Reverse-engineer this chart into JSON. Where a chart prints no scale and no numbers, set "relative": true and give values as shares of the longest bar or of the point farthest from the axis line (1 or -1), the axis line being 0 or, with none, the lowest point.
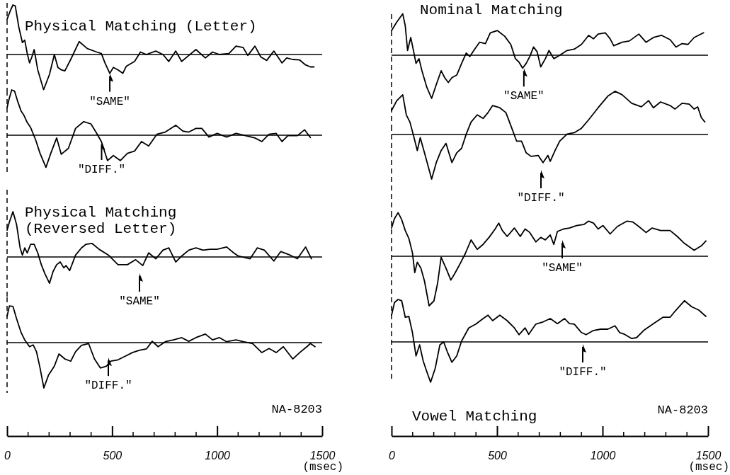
{
  "chart_data": [
    {
      "type": "line",
      "relative": true,
      "title": "Physical Matching (Letter)",
      "xlim": [
        0,
        1500
      ],
      "tick_labels": false,
      "x": [
        0,
        17,
        28,
        39,
        56,
        73,
        84,
        96,
        107,
        118,
        129,
        146,
        174,
        202,
        225,
        242,
        258,
        275,
        303,
        343,
        382,
        427,
        449,
        466,
        489,
        506,
        528,
        551,
        567,
        607,
        635,
        663,
        708,
        742,
        770,
        803,
        831,
        865,
        899,
        944,
        978,
        1011,
        1056,
        1090,
        1124,
        1146,
        1180,
        1208,
        1236,
        1270,
        1309,
        1331,
        1360,
        1393,
        1421,
        1444,
        1461
      ],
      "series": [
        {
          "color": "#000000",
          "values": [
            0.71,
            0.9,
            1.0,
            0.98,
            0.55,
            0.24,
            0.29,
            0.02,
            -0.17,
            -0.05,
            0.1,
            -0.31,
            -0.71,
            -0.4,
            0.0,
            -0.26,
            -0.31,
            -0.33,
            -0.1,
            0.26,
            0.12,
            0.05,
            0.02,
            -0.17,
            -0.38,
            -0.26,
            -0.31,
            -0.38,
            -0.24,
            -0.14,
            0.05,
            0.0,
            0.07,
            0.0,
            -0.14,
            0.07,
            -0.14,
            -0.02,
            0.1,
            -0.07,
            0.05,
            0.0,
            0.02,
            0.17,
            0.14,
            -0.02,
            0.17,
            -0.05,
            -0.12,
            0.07,
            -0.17,
            -0.07,
            -0.1,
            -0.11,
            -0.21,
            -0.25,
            -0.25
          ]
        }
      ],
      "ref_lines": [
        {
          "axis": "x",
          "value": 0,
          "line_style": "dashed"
        }
      ],
      "annotations": [
        {
          "text": "\"SAME\"",
          "x": 489,
          "y": -0.38
        }
      ]
    },
    {
      "type": "line",
      "relative": true,
      "xlim": [
        0,
        1500
      ],
      "tick_labels": false,
      "x": [
        0,
        9,
        22,
        36,
        51,
        67,
        79,
        96,
        112,
        135,
        157,
        185,
        208,
        236,
        258,
        292,
        326,
        365,
        399,
        427,
        449,
        478,
        506,
        539,
        573,
        607,
        640,
        674,
        713,
        753,
        803,
        837,
        865,
        899,
        927,
        961,
        1000,
        1045,
        1090,
        1135,
        1180,
        1213,
        1247,
        1281,
        1309,
        1337,
        1382,
        1416,
        1444
      ],
      "series": [
        {
          "color": "#000000",
          "values": [
            0.61,
            0.79,
            1.0,
            0.97,
            0.74,
            0.53,
            0.45,
            0.28,
            0.17,
            -0.09,
            -0.4,
            -0.71,
            -0.4,
            -0.06,
            -0.42,
            -0.29,
            0.15,
            0.3,
            0.25,
            0.04,
            -0.14,
            -0.56,
            -0.45,
            -0.56,
            -0.4,
            -0.35,
            -0.14,
            -0.24,
            0.02,
            0.07,
            0.22,
            0.09,
            0.07,
            0.15,
            0.15,
            -0.04,
            0.04,
            -0.04,
            0.04,
            -0.01,
            -0.06,
            -0.14,
            0.02,
            0.04,
            -0.14,
            -0.01,
            -0.01,
            0.12,
            -0.05
          ]
        }
      ],
      "ref_lines": [
        {
          "axis": "x",
          "value": 0,
          "line_style": "dashed"
        }
      ],
      "annotations": [
        {
          "text": "\"DIFF.\"",
          "x": 450,
          "y": -0.14
        }
      ]
    },
    {
      "type": "line",
      "relative": true,
      "title": "Physical Matching (Reversed Letter)",
      "xlim": [
        0,
        1500
      ],
      "tick_labels": false,
      "x": [
        0,
        11,
        28,
        45,
        62,
        73,
        84,
        96,
        112,
        129,
        146,
        163,
        180,
        202,
        219,
        236,
        253,
        270,
        281,
        298,
        326,
        354,
        376,
        404,
        438,
        483,
        528,
        573,
        612,
        646,
        674,
        708,
        742,
        770,
        803,
        831,
        865,
        899,
        933,
        966,
        1000,
        1045,
        1079,
        1101,
        1157,
        1191,
        1225,
        1270,
        1303,
        1348,
        1382,
        1421,
        1449
      ],
      "series": [
        {
          "color": "#000000",
          "values": [
            0.59,
            0.77,
            1.0,
            0.72,
            0.2,
            0.04,
            0.2,
            0.09,
            0.28,
            0.28,
            0.09,
            -0.17,
            -0.37,
            -0.58,
            -0.32,
            -0.17,
            -0.11,
            -0.24,
            -0.19,
            -0.3,
            0.04,
            0.2,
            0.28,
            0.3,
            0.17,
            0.04,
            -0.17,
            -0.17,
            -0.06,
            -0.19,
            0.09,
            -0.04,
            0.15,
            0.2,
            -0.11,
            0.02,
            0.15,
            0.2,
            0.15,
            0.17,
            0.17,
            0.22,
            0.09,
            0.02,
            -0.04,
            0.2,
            0.15,
            -0.09,
            0.12,
            0.04,
            -0.04,
            0.22,
            -0.04
          ]
        }
      ],
      "ref_lines": [
        {
          "axis": "x",
          "value": 0,
          "line_style": "dashed"
        }
      ],
      "annotations": [
        "\"SAME\""
      ]
    },
    {
      "type": "line",
      "relative": true,
      "xlim": [
        0,
        1500
      ],
      "tick_labels": "x",
      "xlabel": "(msec)",
      "xticks": [
        0,
        500,
        1000,
        1500
      ],
      "x": [
        0,
        11,
        28,
        45,
        67,
        84,
        96,
        107,
        124,
        140,
        157,
        175,
        197,
        225,
        247,
        275,
        303,
        326,
        354,
        388,
        416,
        444,
        472,
        494,
        528,
        562,
        596,
        629,
        663,
        691,
        719,
        753,
        792,
        831,
        865,
        899,
        944,
        978,
        1011,
        1045,
        1090,
        1124,
        1169,
        1213,
        1247,
        1281,
        1315,
        1360,
        1393,
        1427,
        1444,
        1466
      ],
      "series": [
        {
          "color": "#000000",
          "values": [
            0.58,
            0.81,
            0.8,
            0.53,
            0.22,
            0.06,
            -0.02,
            -0.09,
            -0.05,
            -0.2,
            -0.56,
            -1.0,
            -0.72,
            -0.52,
            -0.25,
            -0.36,
            -0.41,
            -0.2,
            -0.06,
            -0.02,
            -0.36,
            -0.56,
            -0.52,
            -0.41,
            -0.38,
            -0.3,
            -0.22,
            -0.17,
            -0.14,
            0.03,
            -0.09,
            0.02,
            0.06,
            0.11,
            0.03,
            0.11,
            0.19,
            0.06,
            0.11,
            0.02,
            0.06,
            0.02,
            -0.02,
            -0.22,
            -0.13,
            -0.22,
            -0.09,
            -0.36,
            -0.22,
            -0.09,
            -0.02,
            -0.09
          ]
        }
      ],
      "ref_lines": [
        {
          "axis": "x",
          "value": 0,
          "line_style": "dashed"
        }
      ],
      "annotations": [
        {
          "text": "\"DIFF.\"",
          "x": 482,
          "y": -0.33
        },
        "NA-8203"
      ]
    },
    {
      "type": "line",
      "relative": true,
      "title": "Nominal Matching",
      "xlim": [
        0,
        1500
      ],
      "tick_labels": false,
      "x": [
        0,
        25,
        53,
        65,
        76,
        91,
        105,
        116,
        130,
        144,
        167,
        190,
        212,
        235,
        252,
        269,
        286,
        309,
        332,
        354,
        371,
        394,
        417,
        445,
        468,
        502,
        536,
        565,
        587,
        604,
        621,
        638,
        655,
        673,
        690,
        707,
        729,
        746,
        769,
        797,
        832,
        866,
        900,
        934,
        957,
        979,
        1013,
        1036,
        1053,
        1093,
        1127,
        1172,
        1206,
        1241,
        1280,
        1320,
        1348,
        1377,
        1405,
        1434,
        1479
      ],
      "series": [
        {
          "color": "#000000",
          "values": [
            0.57,
            0.77,
            0.96,
            0.68,
            0.11,
            0.41,
            0.08,
            -0.19,
            -0.08,
            -0.36,
            -0.74,
            -1.0,
            -0.68,
            -0.36,
            -0.52,
            -0.63,
            -0.52,
            -0.46,
            -0.19,
            0.05,
            -0.03,
            0.14,
            0.3,
            0.27,
            0.52,
            0.57,
            0.44,
            0.25,
            -0.08,
            -0.16,
            -0.3,
            -0.19,
            -0.03,
            0.19,
            0.08,
            -0.27,
            -0.08,
            0.11,
            -0.08,
            0.0,
            0.11,
            0.14,
            0.25,
            0.46,
            0.38,
            0.49,
            0.52,
            0.38,
            0.22,
            0.3,
            0.33,
            0.49,
            0.3,
            0.41,
            0.46,
            0.36,
            0.19,
            0.27,
            0.25,
            0.41,
            0.52
          ]
        }
      ],
      "ref_lines": [
        {
          "axis": "x",
          "value": 0,
          "line_style": "dashed"
        }
      ],
      "annotations": [
        {
          "text": "\"SAME\"",
          "x": 627,
          "y": -0.3
        }
      ]
    },
    {
      "type": "line",
      "relative": true,
      "xlim": [
        0,
        1500
      ],
      "tick_labels": false,
      "x": [
        0,
        25,
        53,
        70,
        87,
        105,
        122,
        136,
        156,
        190,
        212,
        235,
        258,
        286,
        309,
        332,
        354,
        377,
        406,
        434,
        457,
        479,
        513,
        542,
        570,
        593,
        616,
        638,
        661,
        695,
        718,
        741,
        752,
        775,
        797,
        832,
        866,
        900,
        934,
        979,
        1025,
        1059,
        1093,
        1138,
        1184,
        1218,
        1241,
        1275,
        1320,
        1343,
        1377,
        1411,
        1434,
        1451,
        1468,
        1485
      ],
      "series": [
        {
          "color": "#000000",
          "values": [
            0.54,
            0.76,
            0.89,
            0.44,
            0.28,
            -0.04,
            -0.36,
            -0.07,
            -0.41,
            -1.0,
            -0.63,
            -0.36,
            -0.2,
            -0.63,
            -0.41,
            -0.31,
            0.01,
            0.28,
            0.44,
            0.36,
            0.49,
            0.65,
            0.6,
            0.49,
            0.14,
            -0.15,
            -0.15,
            -0.41,
            -0.49,
            -0.47,
            -0.63,
            -0.47,
            -0.6,
            -0.36,
            -0.15,
            0.01,
            0.04,
            0.14,
            0.33,
            0.6,
            0.86,
            0.97,
            0.89,
            0.7,
            0.62,
            0.76,
            0.6,
            0.73,
            0.65,
            0.57,
            0.7,
            0.68,
            0.57,
            0.62,
            0.38,
            0.28
          ]
        }
      ],
      "ref_lines": [
        {
          "axis": "x",
          "value": 0,
          "line_style": "dashed"
        }
      ],
      "annotations": [
        "\"DIFF.\""
      ]
    },
    {
      "type": "line",
      "relative": true,
      "xlim": [
        0,
        1500
      ],
      "tick_labels": false,
      "x": [
        0,
        14,
        31,
        48,
        65,
        82,
        99,
        110,
        122,
        139,
        156,
        178,
        201,
        218,
        235,
        258,
        281,
        298,
        320,
        349,
        377,
        406,
        434,
        462,
        491,
        508,
        525,
        548,
        582,
        610,
        633,
        655,
        684,
        707,
        729,
        752,
        769,
        786,
        815,
        843,
        877,
        911,
        934,
        957,
        979,
        1002,
        1036,
        1070,
        1116,
        1144,
        1172,
        1206,
        1235,
        1275,
        1320,
        1354,
        1388,
        1434,
        1468,
        1490
      ],
      "series": [
        {
          "color": "#000000",
          "values": [
            0.57,
            0.76,
            0.88,
            0.74,
            0.52,
            0.36,
            0.07,
            -0.33,
            -0.12,
            -0.24,
            -0.5,
            -1.0,
            -0.9,
            -0.55,
            -0.02,
            -0.24,
            -0.48,
            -0.36,
            -0.19,
            0.05,
            0.33,
            0.14,
            0.24,
            0.38,
            0.55,
            0.67,
            0.52,
            0.4,
            0.57,
            0.4,
            0.55,
            0.48,
            0.29,
            0.38,
            0.33,
            0.43,
            0.24,
            0.5,
            0.55,
            0.57,
            0.62,
            0.64,
            0.71,
            0.67,
            0.55,
            0.62,
            0.45,
            0.6,
            0.71,
            0.69,
            0.6,
            0.48,
            0.57,
            0.52,
            0.52,
            0.4,
            0.26,
            0.12,
            0.21,
            0.31
          ]
        }
      ],
      "ref_lines": [
        {
          "axis": "x",
          "value": 0,
          "line_style": "dashed"
        }
      ],
      "annotations": [
        "\"SAME\""
      ]
    },
    {
      "type": "line",
      "relative": true,
      "title": "Vowel Matching",
      "xlim": [
        0,
        1500
      ],
      "tick_labels": "x",
      "xlabel": "(msec)",
      "xticks": [
        0,
        500,
        1000,
        1500
      ],
      "x": [
        0,
        14,
        31,
        48,
        65,
        82,
        99,
        116,
        133,
        150,
        167,
        185,
        207,
        229,
        247,
        264,
        286,
        309,
        332,
        366,
        400,
        434,
        457,
        479,
        513,
        548,
        582,
        604,
        633,
        650,
        684,
        718,
        752,
        786,
        820,
        843,
        866,
        900,
        922,
        957,
        991,
        1025,
        1059,
        1081,
        1104,
        1138,
        1161,
        1195,
        1241,
        1286,
        1320,
        1343,
        1388,
        1422,
        1456,
        1490
      ],
      "series": [
        {
          "color": "#000000",
          "values": [
            0.63,
            0.93,
            1.0,
            0.97,
            0.58,
            0.6,
            0.22,
            -0.33,
            -0.07,
            -0.45,
            -0.7,
            -0.95,
            -0.62,
            -0.07,
            0.0,
            -0.23,
            -0.48,
            -0.33,
            0.02,
            0.33,
            0.42,
            0.55,
            0.63,
            0.5,
            0.63,
            0.5,
            0.33,
            0.17,
            0.33,
            0.18,
            0.42,
            0.47,
            0.55,
            0.43,
            0.55,
            0.43,
            0.42,
            0.22,
            0.17,
            0.27,
            0.3,
            0.3,
            0.38,
            0.22,
            0.18,
            0.08,
            0.1,
            0.27,
            0.43,
            0.58,
            0.58,
            0.72,
            0.97,
            0.83,
            0.75,
            0.6
          ]
        }
      ],
      "ref_lines": [
        {
          "axis": "x",
          "value": 0,
          "line_style": "dashed"
        }
      ],
      "annotations": [
        "\"DIFF.\"",
        "NA-8203"
      ]
    }
  ]
}
